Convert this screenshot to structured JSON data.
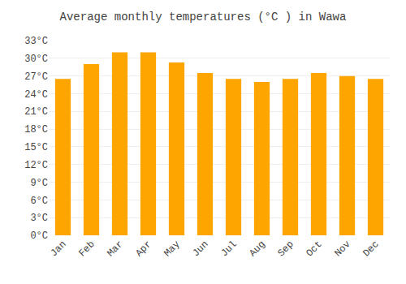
{
  "chart_data": {
    "type": "bar",
    "title": "Average monthly temperatures (°C ) in Wawa",
    "categories": [
      "Jan",
      "Feb",
      "Mar",
      "Apr",
      "May",
      "Jun",
      "Jul",
      "Aug",
      "Sep",
      "Oct",
      "Nov",
      "Dec"
    ],
    "values": [
      26.5,
      29.0,
      31.0,
      31.0,
      29.3,
      27.5,
      26.5,
      26.0,
      26.5,
      27.5,
      27.0,
      26.5
    ],
    "color": "#FFA500",
    "ylim": [
      0,
      33
    ],
    "yticks": [
      {
        "value": 0,
        "label": "0°C"
      },
      {
        "value": 3,
        "label": "3°C"
      },
      {
        "value": 6,
        "label": "6°C"
      },
      {
        "value": 9,
        "label": "9°C"
      },
      {
        "value": 12,
        "label": "12°C"
      },
      {
        "value": 15,
        "label": "15°C"
      },
      {
        "value": 18,
        "label": "18°C"
      },
      {
        "value": 21,
        "label": "21°C"
      },
      {
        "value": 24,
        "label": "24°C"
      },
      {
        "value": 27,
        "label": "27°C"
      },
      {
        "value": 30,
        "label": "30°C"
      },
      {
        "value": 33,
        "label": "33°C"
      }
    ],
    "grid": true
  }
}
